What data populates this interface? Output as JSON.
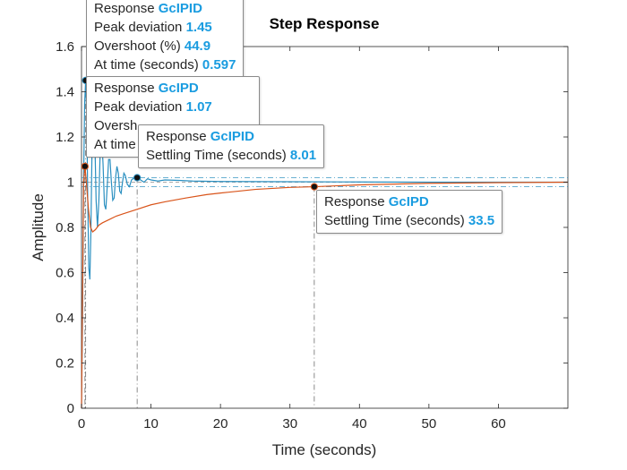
{
  "chart_data": {
    "type": "line",
    "title": "Step Response",
    "xlabel": "Time (seconds)",
    "ylabel": "Amplitude",
    "xlim": [
      0,
      70
    ],
    "ylim": [
      0,
      1.6
    ],
    "xticks": [
      0,
      10,
      20,
      30,
      40,
      50,
      60
    ],
    "yticks": [
      0,
      0.2,
      0.4,
      0.6,
      0.8,
      1,
      1.2,
      1.4,
      1.6
    ],
    "settling_band": [
      0.98,
      1.02
    ],
    "series": [
      {
        "name": "GcIPID",
        "color": "#2a8fc0",
        "x": [
          0,
          0.15,
          0.3,
          0.45,
          0.597,
          0.75,
          0.9,
          1.05,
          1.2,
          1.35,
          1.5,
          1.7,
          1.9,
          2.1,
          2.3,
          2.5,
          2.7,
          2.9,
          3.1,
          3.3,
          3.5,
          3.7,
          3.9,
          4.1,
          4.3,
          4.5,
          4.7,
          4.9,
          5.1,
          5.3,
          5.5,
          5.7,
          5.9,
          6.1,
          6.3,
          6.6,
          6.9,
          7.2,
          7.6,
          8.01,
          8.5,
          9,
          9.5,
          10,
          11,
          12,
          14,
          16,
          20,
          30,
          40,
          50,
          60,
          70
        ],
        "y": [
          0,
          0.4,
          1.0,
          1.35,
          1.45,
          1.3,
          0.92,
          0.62,
          0.57,
          0.78,
          1.12,
          1.33,
          1.22,
          0.92,
          0.8,
          0.92,
          1.15,
          1.2,
          1.08,
          0.9,
          0.88,
          0.98,
          1.1,
          1.1,
          1.0,
          0.92,
          0.93,
          1.02,
          1.07,
          1.04,
          0.96,
          0.95,
          1.0,
          1.04,
          1.03,
          0.99,
          0.98,
          1.01,
          1.02,
          1.02,
          1.01,
          1.0,
          1.015,
          1.01,
          1.005,
          1.01,
          1.008,
          1.005,
          1.003,
          1.002,
          1.001,
          1.0,
          1.0,
          1.0
        ]
      },
      {
        "name": "GcIPD",
        "color": "#d9541a",
        "x": [
          0,
          0.15,
          0.3,
          0.5,
          0.7,
          1.0,
          1.3,
          1.6,
          2.0,
          2.5,
          3.0,
          4,
          5,
          6,
          8,
          10,
          12,
          15,
          18,
          20,
          25,
          30,
          33.5,
          40,
          50,
          60,
          70
        ],
        "y": [
          0,
          0.5,
          1.0,
          1.07,
          1.0,
          0.88,
          0.8,
          0.78,
          0.79,
          0.81,
          0.82,
          0.835,
          0.85,
          0.86,
          0.88,
          0.9,
          0.913,
          0.93,
          0.945,
          0.952,
          0.968,
          0.977,
          0.98,
          0.988,
          0.995,
          0.998,
          1.0
        ]
      }
    ],
    "datatips": [
      {
        "series": "GcIPID",
        "kind": "peak",
        "x": 0.597,
        "y": 1.45,
        "response_label": "Response",
        "response_value": "GcIPID",
        "peak_label": "Peak deviation",
        "peak_value": "1.45",
        "overshoot_label": "Overshoot (%)",
        "overshoot_value": "44.9",
        "time_label": "At time (seconds)",
        "time_value": "0.597"
      },
      {
        "series": "GcIPD",
        "kind": "peak",
        "x": 0.5,
        "y": 1.07,
        "response_label": "Response",
        "response_value": "GcIPD",
        "peak_label": "Peak deviation",
        "peak_value": "1.07",
        "overshoot_label": "Oversh",
        "time_label": "At time"
      },
      {
        "series": "GcIPID",
        "kind": "settling",
        "x": 8.01,
        "y": 1.02,
        "response_label": "Response",
        "response_value": "GcIPID",
        "settling_label": "Settling Time (seconds)",
        "settling_value": "8.01"
      },
      {
        "series": "GcIPD",
        "kind": "settling",
        "x": 33.5,
        "y": 0.98,
        "response_label": "Response",
        "response_value": "GcIPD",
        "settling_label": "Settling Time (seconds)",
        "settling_value": "33.5"
      }
    ]
  }
}
